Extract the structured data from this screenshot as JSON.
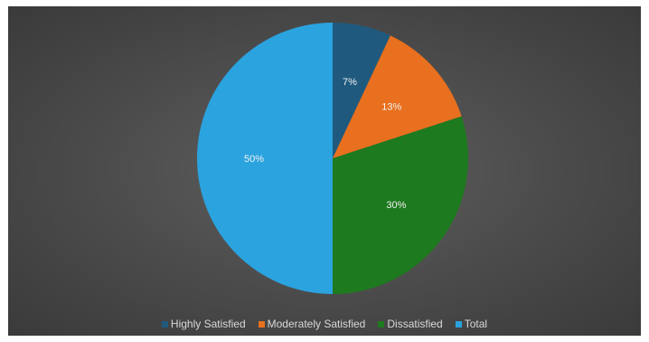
{
  "chart_data": {
    "type": "pie",
    "slices": [
      {
        "label": "Highly Satisfied",
        "value": 7,
        "display": "7%",
        "color": "#1f5a7e"
      },
      {
        "label": "Moderately Satisfied",
        "value": 13,
        "display": "13%",
        "color": "#e8701f"
      },
      {
        "label": "Dissatisfied",
        "value": 30,
        "display": "30%",
        "color": "#1e7a1e"
      },
      {
        "label": "Total",
        "value": 50,
        "display": "50%",
        "color": "#2aa3de"
      }
    ],
    "legend_position": "bottom",
    "start_angle": "top, clockwise"
  }
}
